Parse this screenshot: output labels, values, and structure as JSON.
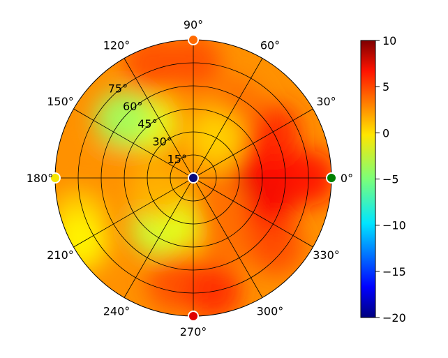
{
  "chart_data": {
    "type": "heatmap",
    "subtype": "polar",
    "angle_tick_labels": [
      {
        "angle": 0,
        "label": "0°"
      },
      {
        "angle": 30,
        "label": "30°"
      },
      {
        "angle": 60,
        "label": "60°"
      },
      {
        "angle": 90,
        "label": "90°"
      },
      {
        "angle": 120,
        "label": "120°"
      },
      {
        "angle": 150,
        "label": "150°"
      },
      {
        "angle": 180,
        "label": "180°"
      },
      {
        "angle": 210,
        "label": "210°"
      },
      {
        "angle": 240,
        "label": "240°"
      },
      {
        "angle": 270,
        "label": "270°"
      },
      {
        "angle": 300,
        "label": "300°"
      },
      {
        "angle": 330,
        "label": "330°"
      }
    ],
    "radial_tick_labels": [
      "15°",
      "30°",
      "45°",
      "60°",
      "75°"
    ],
    "radial_ticks": [
      15,
      30,
      45,
      60,
      75
    ],
    "r_max": 90,
    "grid": true,
    "colormap": "jet",
    "colorbar": {
      "range": [
        -20,
        10
      ],
      "ticks": [
        10,
        5,
        0,
        -5,
        -10,
        -15,
        -20
      ],
      "tick_labels": [
        "10",
        "5",
        "0",
        "−5",
        "−10",
        "−15",
        "−20"
      ]
    },
    "field_samples": [
      {
        "az": 0,
        "el": 45,
        "value": 7
      },
      {
        "az": 345,
        "el": 50,
        "value": 7
      },
      {
        "az": 15,
        "el": 50,
        "value": 6
      },
      {
        "az": 330,
        "el": 55,
        "value": 6
      },
      {
        "az": 30,
        "el": 60,
        "value": 5
      },
      {
        "az": 0,
        "el": 75,
        "value": 6
      },
      {
        "az": 60,
        "el": 55,
        "value": 3
      },
      {
        "az": 90,
        "el": 45,
        "value": 2
      },
      {
        "az": 90,
        "el": 75,
        "value": 4
      },
      {
        "az": 110,
        "el": 80,
        "value": 4
      },
      {
        "az": 130,
        "el": 45,
        "value": -2
      },
      {
        "az": 140,
        "el": 60,
        "value": -4
      },
      {
        "az": 180,
        "el": 50,
        "value": 2
      },
      {
        "az": 180,
        "el": 75,
        "value": 2
      },
      {
        "az": 200,
        "el": 80,
        "value": 0
      },
      {
        "az": 210,
        "el": 85,
        "value": -1
      },
      {
        "az": 235,
        "el": 40,
        "value": -3
      },
      {
        "az": 250,
        "el": 30,
        "value": -2
      },
      {
        "az": 260,
        "el": 70,
        "value": 4
      },
      {
        "az": 280,
        "el": 75,
        "value": 5
      },
      {
        "az": 300,
        "el": 45,
        "value": 3
      },
      {
        "az": 320,
        "el": 70,
        "value": 4
      },
      {
        "az": 60,
        "el": 30,
        "value": 0
      },
      {
        "az": 200,
        "el": 25,
        "value": 1
      },
      {
        "az": 315,
        "el": 25,
        "value": 3
      }
    ],
    "markers": [
      {
        "az": 0,
        "el": 90,
        "color": "#008000"
      },
      {
        "az": 90,
        "el": 90,
        "color": "#ff6a00"
      },
      {
        "az": 180,
        "el": 90,
        "color": "#f5e600"
      },
      {
        "az": 270,
        "el": 90,
        "color": "#e00000"
      },
      {
        "az": 0,
        "el": 0,
        "color": "#0a0a7a"
      }
    ]
  }
}
